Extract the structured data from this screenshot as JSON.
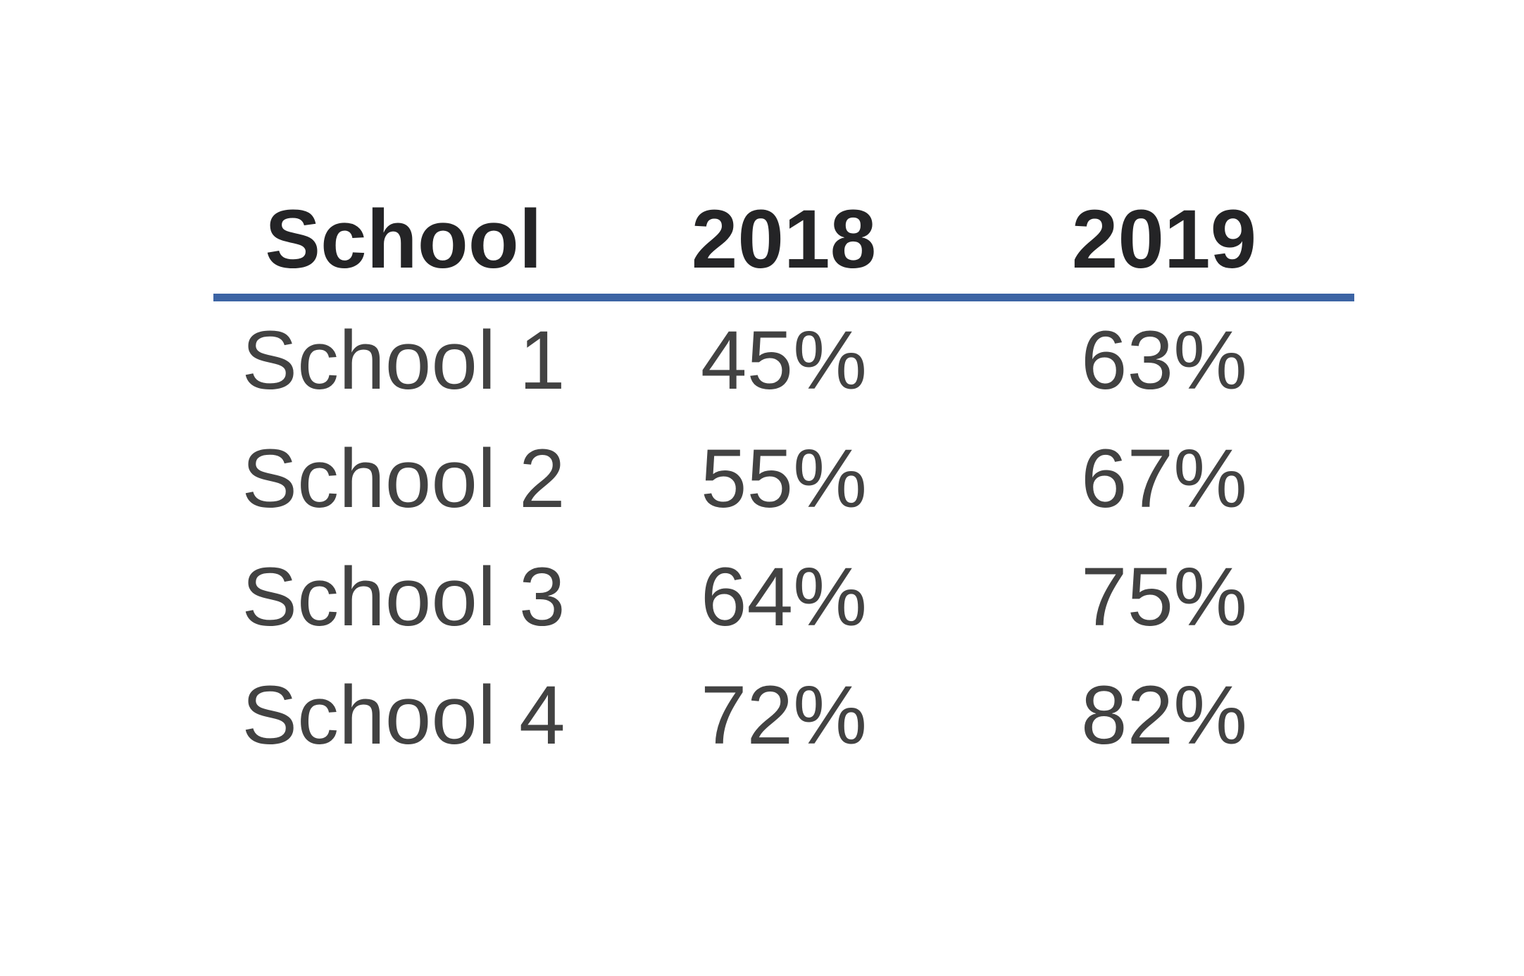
{
  "table": {
    "columns": [
      "School",
      "2018",
      "2019"
    ],
    "rows": [
      [
        "School 1",
        "45%",
        "63%"
      ],
      [
        "School 2",
        "55%",
        "67%"
      ],
      [
        "School 3",
        "64%",
        "75%"
      ],
      [
        "School 4",
        "72%",
        "82%"
      ]
    ]
  },
  "chart_data": {
    "type": "table",
    "title": "",
    "columns": [
      "School",
      "2018",
      "2019"
    ],
    "categories": [
      "School 1",
      "School 2",
      "School 3",
      "School 4"
    ],
    "series": [
      {
        "name": "2018",
        "values": [
          45,
          55,
          64,
          72
        ]
      },
      {
        "name": "2019",
        "values": [
          63,
          67,
          75,
          82
        ]
      }
    ],
    "units": "%",
    "layout": {
      "header_underline": true,
      "cell_borders": false,
      "alignment": "center"
    }
  },
  "colors": {
    "background": "#ffffff",
    "header_text": "#242426",
    "body_text": "#424242",
    "header_rule": "#3c64a4"
  }
}
